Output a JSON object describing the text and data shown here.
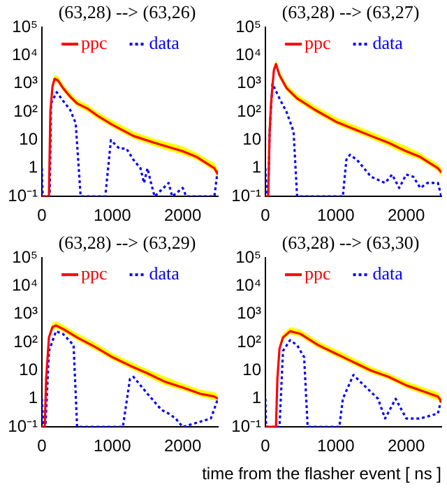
{
  "chart_data": [
    {
      "type": "line",
      "title": "(63,28) --> (63,26)",
      "line_style": "solid",
      "log": "y",
      "legend": "top",
      "grid": false,
      "xlim": [
        0,
        2500
      ],
      "xticks": [
        0,
        1000,
        2000
      ],
      "ylim": [
        0.1,
        100000
      ],
      "yticks": [
        {
          "value": 0.1,
          "label": "10⁻¹"
        },
        {
          "value": 1,
          "label": "1"
        },
        {
          "value": 10,
          "label": "10"
        },
        {
          "value": 100,
          "label": "10²"
        },
        {
          "value": 1000,
          "label": "10³"
        },
        {
          "value": 10000,
          "label": "10⁴"
        },
        {
          "value": 100000,
          "label": "10⁵"
        }
      ],
      "marker": "none",
      "series": [
        {
          "name": "ppc",
          "color": "#ff0000",
          "x": [
            0,
            100,
            120,
            150,
            180,
            230,
            300,
            400,
            500,
            650,
            800,
            1000,
            1300,
            1600,
            2000,
            2200,
            2450,
            2500
          ],
          "values": [
            0.1,
            0.1,
            100,
            800,
            1500,
            1300,
            700,
            350,
            200,
            130,
            70,
            35,
            14,
            8,
            4,
            2.5,
            1,
            0.6
          ],
          "lower": [
            0.1,
            0.1,
            80,
            650,
            1200,
            1050,
            560,
            280,
            160,
            100,
            55,
            28,
            11,
            6,
            3,
            2,
            0.8,
            0.4
          ],
          "upper": [
            0.1,
            0.1,
            140,
            1100,
            2000,
            1800,
            950,
            480,
            280,
            180,
            95,
            50,
            20,
            11,
            6,
            3.5,
            1.5,
            0.9
          ]
        },
        {
          "name": "data",
          "color": "#0000ff",
          "line_style": "dotted",
          "x": [
            0,
            10,
            30,
            110,
            130,
            210,
            300,
            400,
            480,
            550,
            900,
            980,
            1100,
            1200,
            1300,
            1400,
            1450,
            1500,
            1550,
            1600,
            1800,
            1850,
            2000,
            2050,
            2450,
            2500
          ],
          "values": [
            1,
            0.1,
            0.1,
            0.1,
            200,
            500,
            250,
            120,
            40,
            0.1,
            0.1,
            10,
            5,
            5,
            2,
            1,
            0.3,
            1,
            0.3,
            0.1,
            0.3,
            0.1,
            0.2,
            0.1,
            0.1,
            1
          ]
        }
      ]
    },
    {
      "type": "line",
      "title": "(63,28) --> (63,27)",
      "line_style": "solid",
      "log": "y",
      "legend": "top",
      "grid": false,
      "xlim": [
        0,
        2500
      ],
      "xticks": [
        0,
        1000,
        2000
      ],
      "ylim": [
        0.1,
        100000
      ],
      "yticks": [
        {
          "value": 0.1,
          "label": "10⁻¹"
        },
        {
          "value": 1,
          "label": "1"
        },
        {
          "value": 10,
          "label": "10"
        },
        {
          "value": 100,
          "label": "10²"
        },
        {
          "value": 1000,
          "label": "10³"
        },
        {
          "value": 10000,
          "label": "10⁴"
        },
        {
          "value": 100000,
          "label": "10⁵"
        }
      ],
      "marker": "none",
      "series": [
        {
          "name": "ppc",
          "color": "#ff0000",
          "x": [
            0,
            40,
            60,
            80,
            120,
            150,
            200,
            300,
            450,
            700,
            1000,
            1250,
            1500,
            1750,
            2000,
            2200,
            2450,
            2500
          ],
          "values": [
            0.1,
            0.1,
            20,
            200,
            3000,
            5000,
            2000,
            700,
            300,
            120,
            45,
            25,
            14,
            8,
            4,
            2.5,
            1,
            0.7
          ],
          "lower": [
            0.1,
            0.1,
            15,
            160,
            2400,
            4000,
            1600,
            560,
            240,
            95,
            36,
            20,
            11,
            6,
            3,
            2,
            0.8,
            0.5
          ],
          "upper": [
            0.1,
            0.1,
            30,
            280,
            4200,
            7000,
            2800,
            950,
            420,
            170,
            65,
            35,
            20,
            11,
            6,
            3.5,
            1.4,
            1
          ]
        },
        {
          "name": "data",
          "color": "#0000ff",
          "line_style": "dotted",
          "x": [
            0,
            20,
            40,
            60,
            100,
            200,
            300,
            400,
            450,
            1100,
            1150,
            1200,
            1300,
            1500,
            1700,
            1800,
            1900,
            2000,
            2100,
            2200,
            2300,
            2450,
            2500
          ],
          "values": [
            1,
            0.1,
            0.1,
            20,
            1000,
            300,
            100,
            20,
            0.1,
            0.1,
            2,
            3,
            2,
            0.5,
            0.3,
            0.6,
            0.2,
            0.6,
            0.5,
            0.2,
            0.3,
            0.3,
            0.1
          ]
        }
      ]
    },
    {
      "type": "line",
      "title": "(63,28) --> (63,29)",
      "line_style": "solid",
      "log": "y",
      "legend": "top",
      "grid": false,
      "xlim": [
        0,
        2500
      ],
      "xticks": [
        0,
        1000,
        2000
      ],
      "ylim": [
        0.1,
        100000
      ],
      "yticks": [
        {
          "value": 0.1,
          "label": "10⁻¹"
        },
        {
          "value": 1,
          "label": "1"
        },
        {
          "value": 10,
          "label": "10"
        },
        {
          "value": 100,
          "label": "10²"
        },
        {
          "value": 1000,
          "label": "10³"
        },
        {
          "value": 10000,
          "label": "10⁴"
        },
        {
          "value": 100000,
          "label": "10⁵"
        }
      ],
      "marker": "none",
      "series": [
        {
          "name": "ppc",
          "color": "#ff0000",
          "x": [
            0,
            40,
            60,
            100,
            150,
            200,
            300,
            500,
            750,
            1000,
            1250,
            1500,
            1750,
            2000,
            2250,
            2450,
            2500
          ],
          "values": [
            0.1,
            0.1,
            5,
            150,
            350,
            400,
            300,
            150,
            70,
            30,
            15,
            8,
            4,
            2.5,
            1.5,
            1.2,
            1
          ],
          "lower": [
            0.1,
            0.1,
            4,
            120,
            280,
            320,
            240,
            120,
            55,
            24,
            12,
            6,
            3,
            2,
            1.2,
            0.9,
            0.8
          ],
          "upper": [
            0.1,
            0.1,
            7,
            210,
            490,
            560,
            420,
            210,
            100,
            42,
            21,
            11,
            6,
            3.5,
            2.1,
            1.7,
            1.4
          ]
        },
        {
          "name": "data",
          "color": "#0000ff",
          "line_style": "dotted",
          "x": [
            0,
            20,
            50,
            100,
            200,
            300,
            450,
            500,
            1150,
            1250,
            1300,
            1500,
            1700,
            1800,
            1900,
            2000,
            2400,
            2500
          ],
          "values": [
            1,
            0.1,
            0.1,
            50,
            250,
            200,
            80,
            0.1,
            0.1,
            5,
            6,
            1.5,
            0.4,
            0.3,
            0.2,
            0.1,
            0.2,
            1
          ]
        }
      ]
    },
    {
      "type": "line",
      "title": "(63,28) --> (63,30)",
      "line_style": "solid",
      "xlabel": "time from the flasher event [ ns ]",
      "log": "y",
      "legend": "top",
      "grid": false,
      "xlim": [
        0,
        2500
      ],
      "xticks": [
        0,
        1000,
        2000
      ],
      "ylim": [
        0.1,
        100000
      ],
      "yticks": [
        {
          "value": 0.1,
          "label": "10⁻¹"
        },
        {
          "value": 1,
          "label": "1"
        },
        {
          "value": 10,
          "label": "10"
        },
        {
          "value": 100,
          "label": "10²"
        },
        {
          "value": 1000,
          "label": "10³"
        },
        {
          "value": 10000,
          "label": "10⁴"
        },
        {
          "value": 100000,
          "label": "10⁵"
        }
      ],
      "marker": "none",
      "series": [
        {
          "name": "ppc",
          "color": "#ff0000",
          "x": [
            0,
            150,
            170,
            200,
            250,
            350,
            500,
            750,
            1000,
            1250,
            1500,
            1750,
            2000,
            2250,
            2450,
            2500
          ],
          "values": [
            0.1,
            0.1,
            5,
            60,
            150,
            250,
            200,
            80,
            40,
            20,
            10,
            6,
            3,
            1.8,
            1.2,
            0.8
          ],
          "lower": [
            0.1,
            0.1,
            4,
            48,
            120,
            200,
            160,
            64,
            32,
            16,
            8,
            5,
            2.4,
            1.4,
            0.9,
            0.6
          ],
          "upper": [
            0.1,
            0.1,
            7,
            85,
            210,
            350,
            280,
            110,
            56,
            28,
            14,
            8,
            4.2,
            2.5,
            1.7,
            1.1
          ]
        },
        {
          "name": "data",
          "color": "#0000ff",
          "line_style": "dotted",
          "x": [
            0,
            10,
            200,
            250,
            350,
            450,
            550,
            600,
            1050,
            1100,
            1250,
            1400,
            1600,
            1700,
            1850,
            2000,
            2200,
            2450,
            2500
          ],
          "values": [
            1,
            0.1,
            0.1,
            50,
            120,
            80,
            30,
            0.1,
            0.1,
            1,
            7,
            3,
            1,
            0.2,
            1,
            0.2,
            0.2,
            0.3,
            1
          ]
        }
      ]
    }
  ]
}
